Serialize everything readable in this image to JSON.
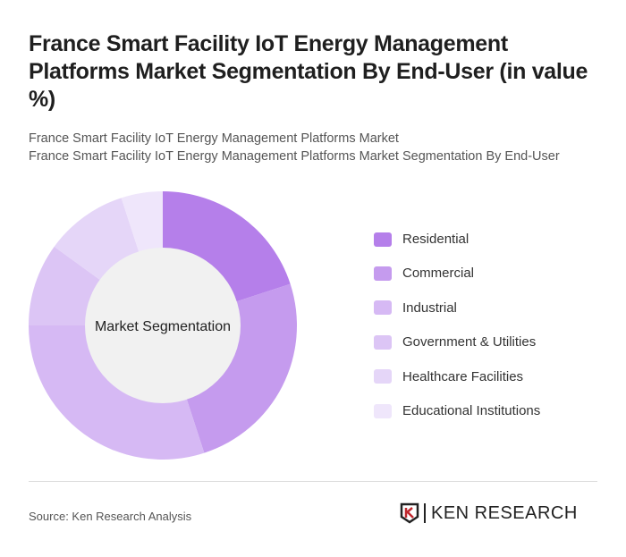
{
  "title": "France Smart Facility IoT Energy Management Platforms Market Segmentation By End-User (in value %)",
  "subtitles": [
    "France Smart Facility IoT Energy Management Platforms Market",
    "France Smart Facility IoT Energy Management Platforms Market Segmentation By End-User"
  ],
  "chart_data": {
    "type": "pie",
    "donut": true,
    "center_label": "Market Segmentation",
    "categories": [
      "Residential",
      "Commercial",
      "Industrial",
      "Government & Utilities",
      "Healthcare Facilities",
      "Educational Institutions"
    ],
    "values": [
      20,
      25,
      30,
      10,
      10,
      5
    ],
    "colors": [
      "#b57fea",
      "#c59bee",
      "#d6b9f4",
      "#dcc5f5",
      "#e5d6f8",
      "#efe6fb"
    ],
    "legend": "right"
  },
  "footer": {
    "source": "Source: Ken Research Analysis",
    "logo": "KEN RESEARCH"
  }
}
